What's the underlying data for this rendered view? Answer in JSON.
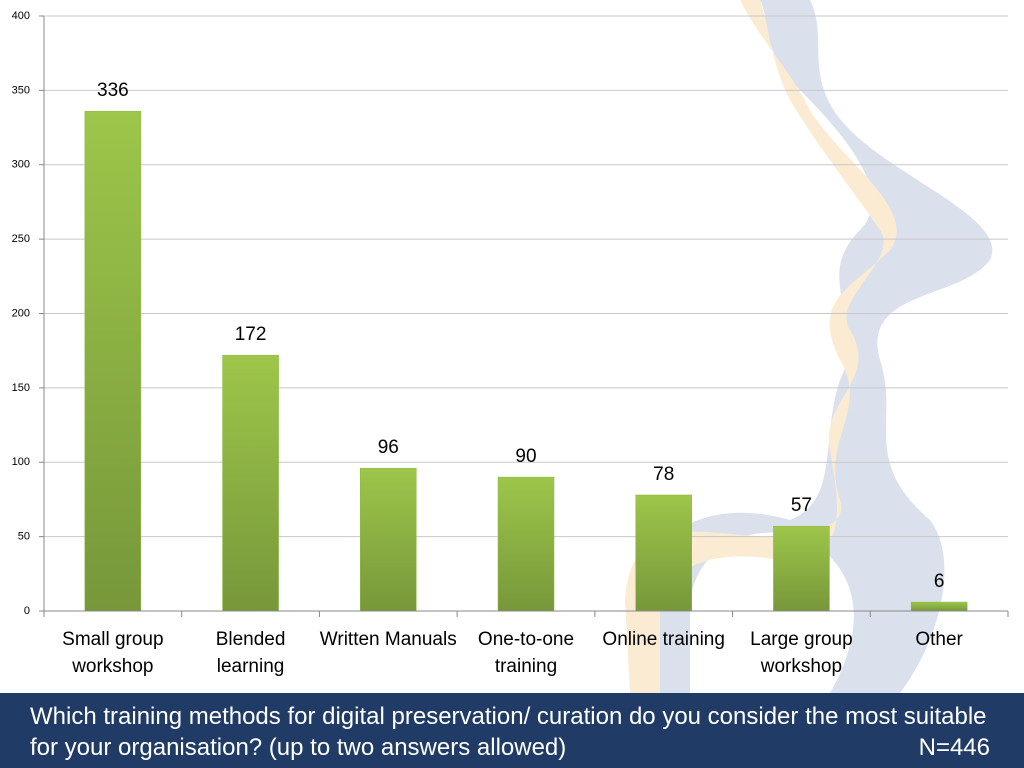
{
  "chart_data": {
    "type": "bar",
    "categories": [
      "Small group workshop",
      "Blended learning",
      "Written Manuals",
      "One-to-one training",
      "Online training",
      "Large group workshop",
      "Other"
    ],
    "values": [
      336,
      172,
      96,
      90,
      78,
      57,
      6
    ],
    "color": "#8ab83e",
    "ylim": [
      0,
      400
    ],
    "yticks": [
      0,
      50,
      100,
      150,
      200,
      250,
      300,
      350,
      400
    ],
    "grid": true
  },
  "footer": {
    "question": "Which training methods for digital preservation/ curation do you consider the most suitable for your organisation? (up to two answers allowed)",
    "n": "N=446"
  }
}
